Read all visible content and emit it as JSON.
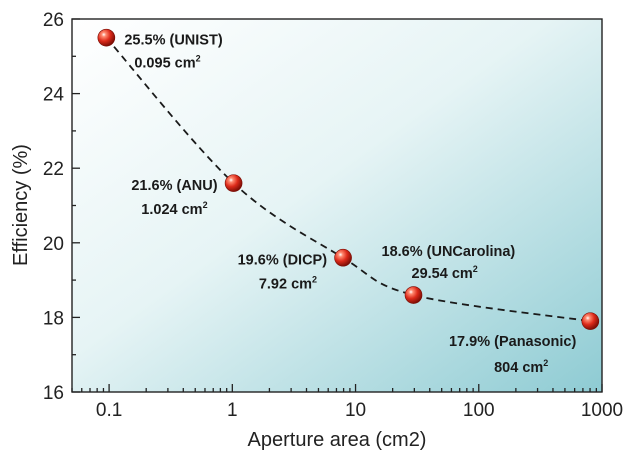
{
  "chart_data": {
    "type": "scatter",
    "xscale": "log",
    "xlim": [
      0.05,
      1000
    ],
    "ylim": [
      16,
      26
    ],
    "xlabel": "Aperture area (cm2)",
    "ylabel": "Efficiency (%)",
    "x_ticks": [
      {
        "value": 0.1,
        "label": "0.1"
      },
      {
        "value": 1,
        "label": "1"
      },
      {
        "value": 10,
        "label": "10"
      },
      {
        "value": 100,
        "label": "100"
      },
      {
        "value": 1000,
        "label": "1000"
      }
    ],
    "y_ticks": [
      {
        "value": 16,
        "label": "16"
      },
      {
        "value": 18,
        "label": "18"
      },
      {
        "value": 20,
        "label": "20"
      },
      {
        "value": 22,
        "label": "22"
      },
      {
        "value": 24,
        "label": "24"
      },
      {
        "value": 26,
        "label": "26"
      }
    ],
    "points": [
      {
        "x": 0.095,
        "y": 25.5,
        "label1": "25.5% (UNIST)",
        "label2": "0.095 cm",
        "label_pos": "right"
      },
      {
        "x": 1.024,
        "y": 21.6,
        "label1": "21.6% (ANU)",
        "label2": "1.024 cm",
        "label_pos": "left"
      },
      {
        "x": 7.92,
        "y": 19.6,
        "label1": "19.6% (DICP)",
        "label2": "7.92 cm",
        "label_pos": "left"
      },
      {
        "x": 29.54,
        "y": 18.6,
        "label1": "18.6% (UNCarolina)",
        "label2": "29.54 cm",
        "label_pos": "upper-right"
      },
      {
        "x": 804,
        "y": 17.9,
        "label1": "17.9% (Panasonic)",
        "label2": "804 cm",
        "label_pos": "below-left"
      }
    ],
    "unit_superscript": "2",
    "trend_line": "dashed",
    "marker_color": "#d42a1e",
    "background_gradient": [
      "#ffffff",
      "#92d0d8"
    ]
  }
}
